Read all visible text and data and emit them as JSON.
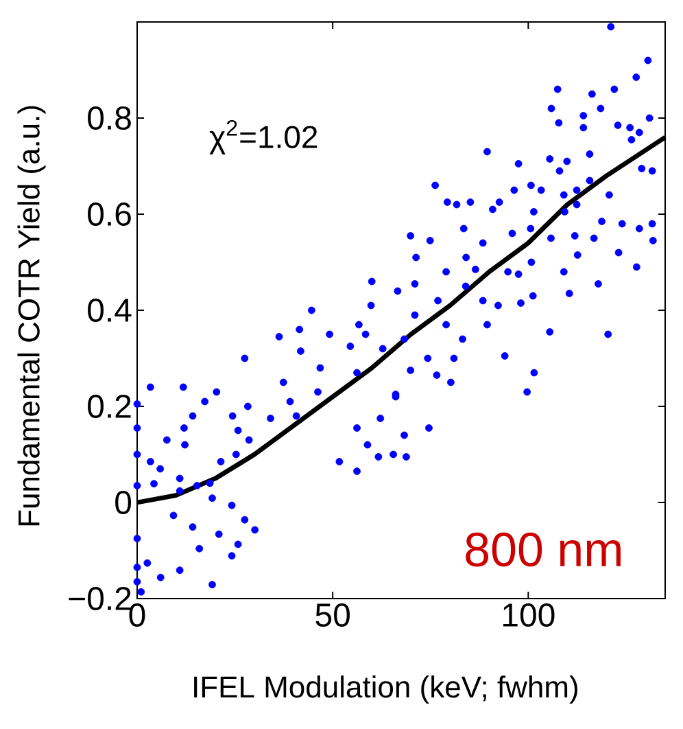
{
  "chart_data": {
    "type": "scatter",
    "xlabel": "IFEL Modulation (keV; fwhm)",
    "ylabel": "Fundamental COTR Yield (a.u.)",
    "annotations": [
      "χ$^{2}$=1.02",
      "800 nm"
    ],
    "xlim": [
      0,
      135
    ],
    "ylim": [
      -0.2,
      1.0
    ],
    "xticks": [
      0,
      50,
      100
    ],
    "yticks": [
      {
        "value": -0.2,
        "label": "−0.2"
      },
      0,
      0.2,
      0.4,
      0.6,
      0.8
    ],
    "series": [
      {
        "type": "scatter",
        "color": "#0000ff",
        "marker": "circle",
        "x": [
          130.6,
          127.6,
          122.0,
          121.1,
          131.0,
          128.4,
          126.0,
          126.4,
          122.9,
          131.7,
          129.0,
          118.5,
          116.3,
          114.1,
          114.1,
          107.5,
          105.9,
          107.8,
          115.7,
          109.9,
          108.0,
          105.5,
          120.7,
          115.7,
          112.4,
          112.4,
          109.1,
          109.3,
          103.3,
          100.7,
          101.4,
          100.6,
          97.5,
          96.4,
          92.6,
          90.9,
          89.5,
          85.2,
          81.7,
          79.3,
          76.2,
          131.7,
          131.9,
          128.4,
          124.0,
          118.8,
          116.8,
          111.9,
          112.6,
          105.8,
          109.1,
          110.5,
          127.7,
          123.1,
          117.9,
          120.4,
          105.5,
          101.5,
          99.7,
          100.8,
          101.2,
          97.5,
          98.1,
          95.9,
          94.8,
          92.3,
          89.5,
          83.2,
          94.0,
          88.4,
          83.5,
          84.1,
          86.5,
          88.4,
          84.0,
          79.0,
          76.9,
          79.0,
          81.0,
          80.2,
          76.6,
          74.3,
          74.9,
          71.3,
          69.9,
          71.0,
          71.0,
          66.6,
          68.3,
          69.9,
          66.1,
          74.6,
          68.3,
          68.8,
          65.5,
          60.0,
          59.8,
          58.4,
          62.8,
          56.7,
          54.5,
          56.2,
          66.1,
          62.2,
          58.9,
          56.2,
          61.7,
          56.2,
          51.7,
          49.2,
          46.8,
          41.8,
          46.2,
          44.6,
          41.5,
          36.3,
          37.4,
          39.1,
          40.7,
          34.1,
          28.6,
          25.8,
          25.3,
          27.5,
          28.3,
          24.4,
          20.3,
          17.3,
          14.2,
          12.0,
          12.2,
          21.4,
          18.6,
          15.3,
          11.8,
          7.6,
          5.9,
          10.9,
          3.4,
          3.4,
          0,
          0,
          0,
          0,
          24.2,
          27.5,
          20.9,
          15.9,
          2.6,
          6.0,
          19.2,
          14.2,
          24.2,
          10.9,
          1.0,
          9.3,
          25.8,
          0,
          0,
          0,
          30.1,
          10.9,
          4.3,
          19.2
        ],
        "values": [
          0.92,
          0.885,
          0.86,
          0.99,
          0.8,
          0.77,
          0.78,
          0.755,
          0.785,
          0.69,
          0.695,
          0.82,
          0.85,
          0.805,
          0.78,
          0.86,
          0.82,
          0.79,
          0.725,
          0.71,
          0.69,
          0.715,
          0.64,
          0.67,
          0.65,
          0.62,
          0.64,
          0.605,
          0.65,
          0.66,
          0.605,
          0.57,
          0.705,
          0.65,
          0.625,
          0.61,
          0.73,
          0.625,
          0.62,
          0.625,
          0.66,
          0.58,
          0.545,
          0.57,
          0.58,
          0.585,
          0.55,
          0.555,
          0.515,
          0.55,
          0.48,
          0.435,
          0.49,
          0.52,
          0.455,
          0.35,
          0.355,
          0.27,
          0.23,
          0.5,
          0.43,
          0.475,
          0.415,
          0.56,
          0.48,
          0.41,
          0.37,
          0.34,
          0.305,
          0.54,
          0.57,
          0.51,
          0.485,
          0.42,
          0.45,
          0.48,
          0.42,
          0.37,
          0.3,
          0.25,
          0.265,
          0.3,
          0.545,
          0.51,
          0.555,
          0.455,
          0.39,
          0.44,
          0.34,
          0.275,
          0.225,
          0.155,
          0.14,
          0.095,
          0.1,
          0.46,
          0.41,
          0.35,
          0.32,
          0.37,
          0.325,
          0.27,
          0.22,
          0.175,
          0.12,
          0.155,
          0.095,
          0.065,
          0.085,
          0.35,
          0.28,
          0.315,
          0.23,
          0.4,
          0.36,
          0.345,
          0.25,
          0.21,
          0.18,
          0.175,
          0.13,
          0.15,
          0.1,
          0.3,
          0.2,
          0.18,
          0.23,
          0.21,
          0.18,
          0.155,
          0.12,
          0.085,
          0.04,
          0.035,
          0.24,
          0.13,
          0.07,
          0.05,
          0.24,
          0.085,
          0.205,
          0.155,
          0.1,
          0.035,
          -0.006,
          -0.036,
          -0.066,
          -0.096,
          -0.126,
          -0.156,
          -0.171,
          -0.051,
          -0.111,
          -0.141,
          -0.186,
          -0.027,
          -0.087,
          -0.075,
          -0.135,
          -0.165,
          -0.057,
          0.024,
          0.039,
          0.009
        ]
      },
      {
        "type": "line",
        "color": "#000000",
        "marker": "none",
        "x": [
          0,
          10,
          20,
          30,
          40,
          50,
          60,
          70,
          80,
          90,
          100,
          110,
          120,
          135
        ],
        "values": [
          0,
          0.015,
          0.05,
          0.1,
          0.16,
          0.22,
          0.28,
          0.35,
          0.41,
          0.48,
          0.54,
          0.62,
          0.68,
          0.76
        ]
      }
    ]
  }
}
